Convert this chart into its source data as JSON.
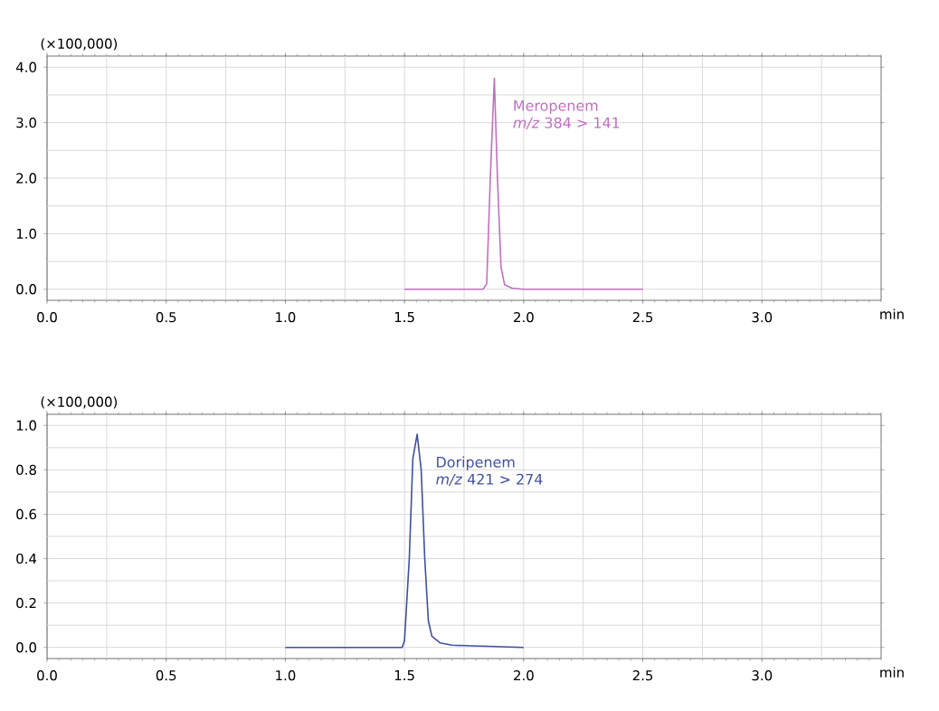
{
  "chart_data": [
    {
      "type": "line",
      "xlabel": "min",
      "ylabel": "(×100,000)",
      "xlim": [
        0,
        3.5
      ],
      "ylim": [
        -0.2,
        4.2
      ],
      "xticks": [
        {
          "value": 0,
          "label": "0.0"
        },
        0.5,
        {
          "value": 1,
          "label": "1.0"
        },
        1.5,
        {
          "value": 2,
          "label": "2.0"
        },
        2.5,
        {
          "value": 3,
          "label": "3.0"
        }
      ],
      "yticks": [
        {
          "value": 0,
          "label": "0.0"
        },
        {
          "value": 1,
          "label": "1.0"
        },
        {
          "value": 2,
          "label": "2.0"
        },
        {
          "value": 3,
          "label": "3.0"
        },
        {
          "value": 4,
          "label": "4.0"
        }
      ],
      "grid": true,
      "legend": false,
      "marker": "none",
      "line_style": "solid",
      "series": [
        {
          "name": "Meropenem",
          "color": "#c070c0",
          "x": [
            1.5,
            1.83,
            1.845,
            1.86,
            1.877,
            1.89,
            1.905,
            1.92,
            1.95,
            2.0,
            2.5
          ],
          "values": [
            0,
            0,
            0.1,
            2.0,
            3.8,
            2.0,
            0.4,
            0.08,
            0.02,
            0,
            0
          ]
        }
      ],
      "annotations": [
        "*m/z* 384 > 141"
      ]
    },
    {
      "type": "line",
      "xlabel": "min",
      "ylabel": "(×100,000)",
      "xlim": [
        0,
        3.5
      ],
      "ylim": [
        -0.05,
        1.05
      ],
      "xticks": [
        {
          "value": 0,
          "label": "0.0"
        },
        0.5,
        {
          "value": 1,
          "label": "1.0"
        },
        1.5,
        {
          "value": 2,
          "label": "2.0"
        },
        2.5,
        {
          "value": 3,
          "label": "3.0"
        }
      ],
      "yticks": [
        {
          "value": 0,
          "label": "0.0"
        },
        0.2,
        0.4,
        0.6,
        0.8,
        {
          "value": 1,
          "label": "1.0"
        }
      ],
      "grid": true,
      "legend": false,
      "marker": "none",
      "line_style": "solid",
      "series": [
        {
          "name": "Doripenem",
          "color": "#4050a0",
          "x": [
            1.0,
            1.49,
            1.5,
            1.52,
            1.535,
            1.553,
            1.57,
            1.585,
            1.6,
            1.615,
            1.65,
            1.7,
            2.0
          ],
          "values": [
            0,
            0,
            0.03,
            0.4,
            0.85,
            0.96,
            0.8,
            0.4,
            0.12,
            0.05,
            0.02,
            0.01,
            0
          ]
        }
      ],
      "annotations": [
        "*m/z* 421 > 274"
      ]
    }
  ]
}
